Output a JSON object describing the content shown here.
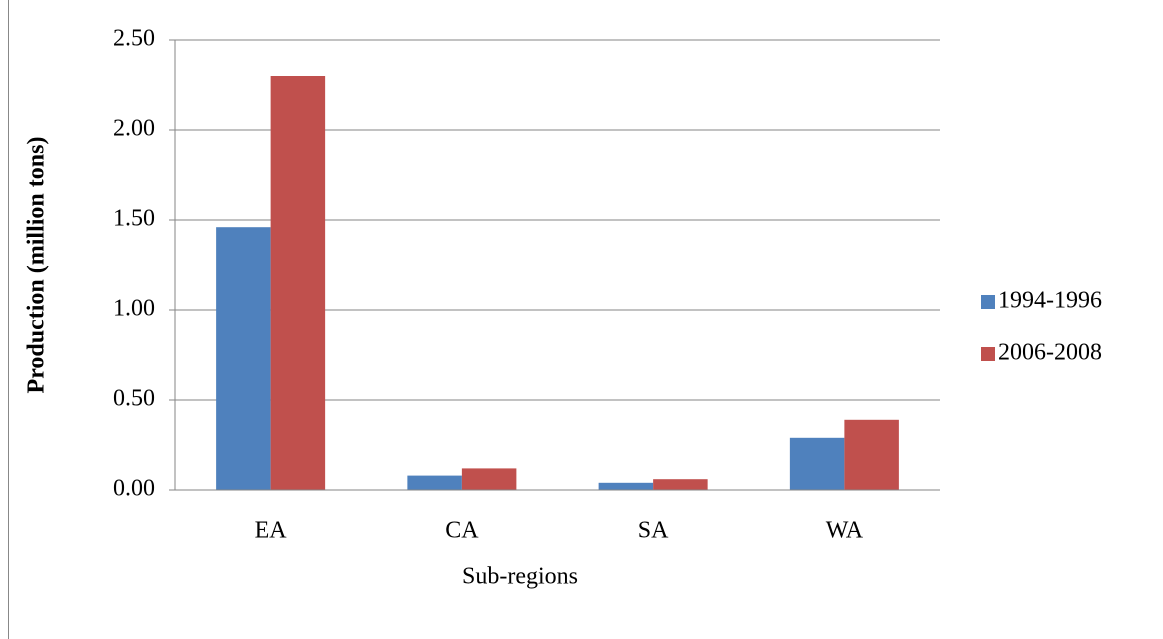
{
  "chart_data": {
    "type": "bar",
    "categories": [
      "EA",
      "CA",
      "SA",
      "WA"
    ],
    "series": [
      {
        "name": "1994-1996",
        "color": "#4f81bd",
        "values": [
          1.46,
          0.08,
          0.04,
          0.29
        ]
      },
      {
        "name": "2006-2008",
        "color": "#c0504d",
        "values": [
          2.3,
          0.12,
          0.06,
          0.39
        ]
      }
    ],
    "ylim": [
      0,
      2.5
    ],
    "yticks": [
      {
        "value": 0,
        "label": "0.00"
      },
      {
        "value": 0.5,
        "label": "0.50"
      },
      {
        "value": 1,
        "label": "1.00"
      },
      {
        "value": 1.5,
        "label": "1.50"
      },
      {
        "value": 2,
        "label": "2.00"
      },
      {
        "value": 2.5,
        "label": "2.50"
      }
    ],
    "y_label": "Production (million tons)",
    "x_label": "Sub-regions",
    "grid": true,
    "legend": "right"
  }
}
